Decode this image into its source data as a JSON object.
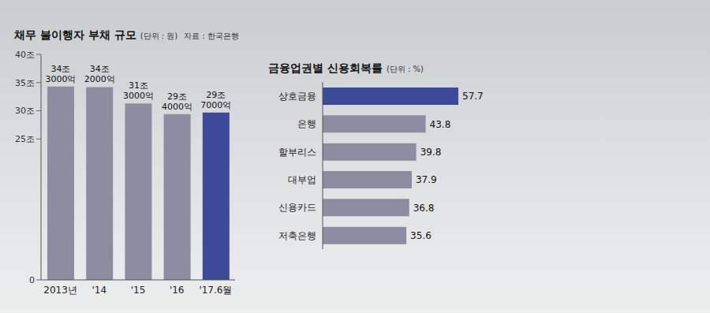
{
  "chart_data": [
    {
      "type": "bar",
      "title": "채무 불이행자 부채 규모",
      "subtitle": "(단위 : 원)",
      "annotations": [
        "자료 : 한국은행"
      ],
      "categories": [
        "2013년",
        "'14",
        "'15",
        "'16",
        "'17.6월"
      ],
      "values": [
        34.3,
        34.2,
        31.3,
        29.4,
        29.7
      ],
      "value_labels": [
        "34조 3000억",
        "34조 2000억",
        "31조 3000억",
        "29조 4000억",
        "29조 7000억"
      ],
      "colors": [
        "#8e8ca0",
        "#8e8ca0",
        "#8e8ca0",
        "#8e8ca0",
        "#3d4a9a"
      ],
      "ylim": [
        0,
        40
      ],
      "yticks": [
        0,
        {
          "value": 25,
          "label": "25조"
        },
        {
          "value": 30,
          "label": "30조"
        },
        {
          "value": 35,
          "label": "35조"
        },
        {
          "value": 40,
          "label": "40조"
        }
      ],
      "data_labels": true,
      "grid": false
    },
    {
      "type": "bar",
      "orientation": "horizontal",
      "title": "금융업권별 신용회복률",
      "subtitle": "(단위 : %)",
      "categories": [
        "상호금융",
        "은행",
        "할부리스",
        "대부업",
        "신용카드",
        "저축은행"
      ],
      "values": [
        57.7,
        43.8,
        39.8,
        37.9,
        36.8,
        35.6
      ],
      "colors": [
        "#3d4a9a",
        "#8e8ca0",
        "#8e8ca0",
        "#8e8ca0",
        "#8e8ca0",
        "#8e8ca0"
      ],
      "data_labels": true,
      "tick_labels": "y",
      "grid": false
    }
  ]
}
